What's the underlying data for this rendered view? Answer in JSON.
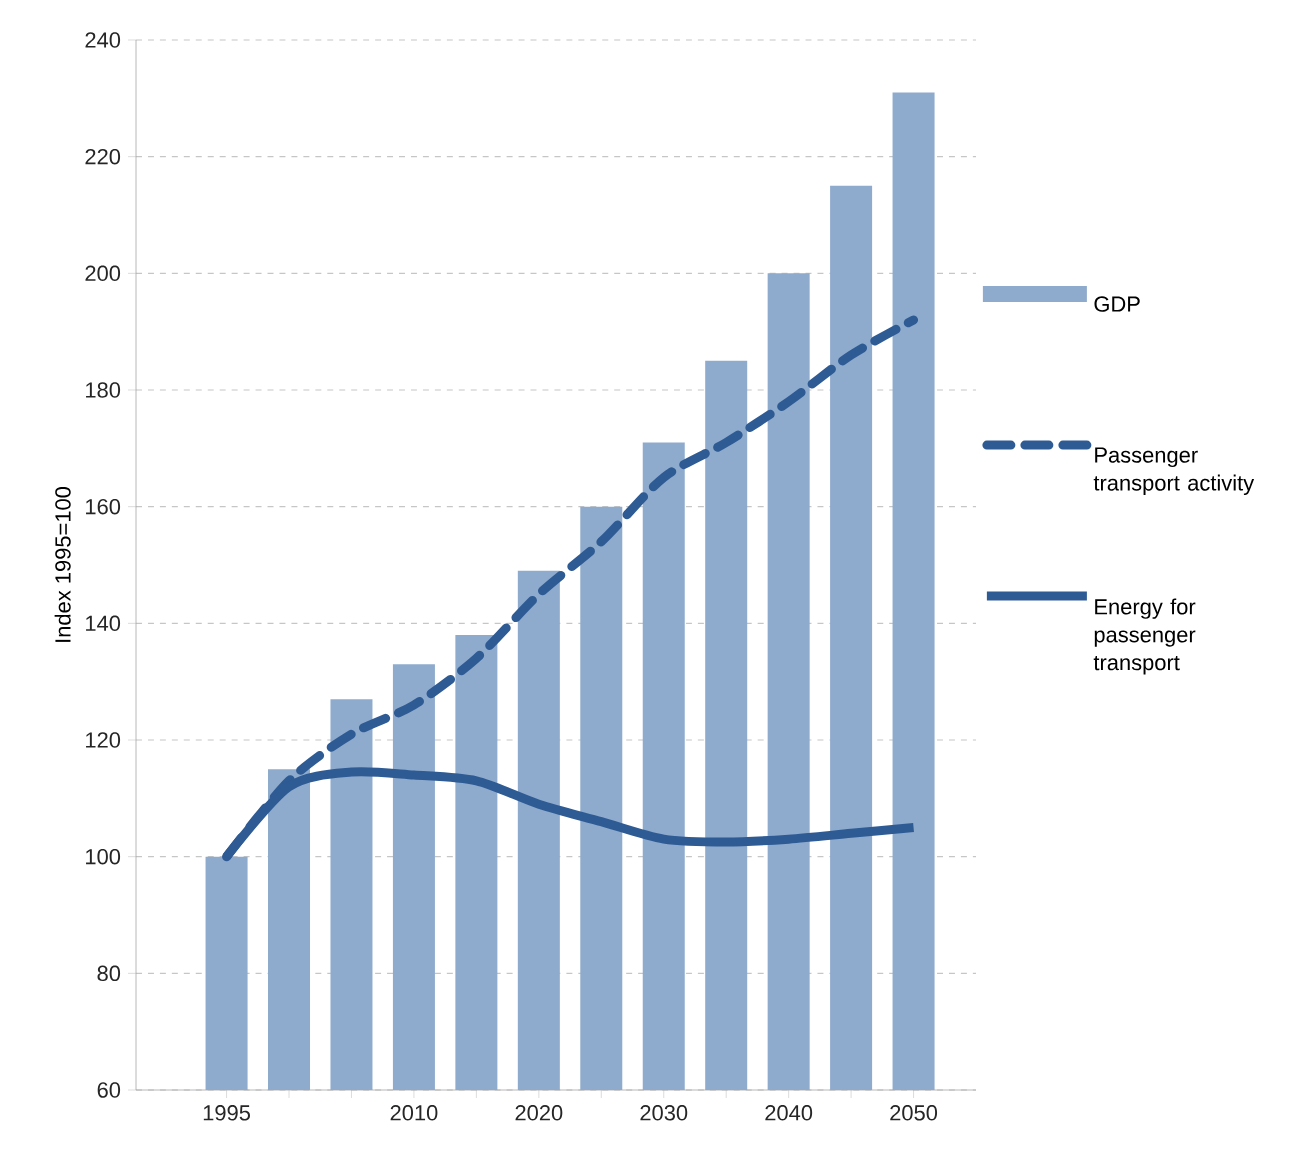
{
  "chart_data": {
    "type": "bar",
    "ylabel": "Index 1995=100",
    "categories": [
      "1995",
      null,
      null,
      "2010",
      null,
      "2020",
      null,
      "2030",
      null,
      "2040",
      null,
      "2050"
    ],
    "series": [
      {
        "name": "GDP",
        "color": "#8eaacc",
        "values": [
          100,
          115,
          127,
          133,
          138,
          149,
          160,
          171,
          185,
          200,
          215,
          231
        ]
      },
      {
        "name": "Passenger transport activity",
        "type": "line",
        "line_style": "dashed",
        "color": "#2e5b94",
        "values": [
          100,
          113,
          121,
          126,
          134,
          145,
          154,
          165,
          171,
          178,
          186,
          192
        ]
      },
      {
        "name": "Energy for passenger transport",
        "type": "line",
        "line_style": "solid",
        "color": "#2e5b94",
        "values": [
          100,
          112,
          114.5,
          114,
          113,
          109,
          106,
          103,
          102.5,
          103,
          104,
          105
        ]
      }
    ],
    "ylim": [
      60,
      240
    ],
    "yticks": [
      60,
      80,
      100,
      120,
      140,
      160,
      180,
      200,
      220,
      240
    ],
    "grid": "y",
    "legend": "right"
  }
}
